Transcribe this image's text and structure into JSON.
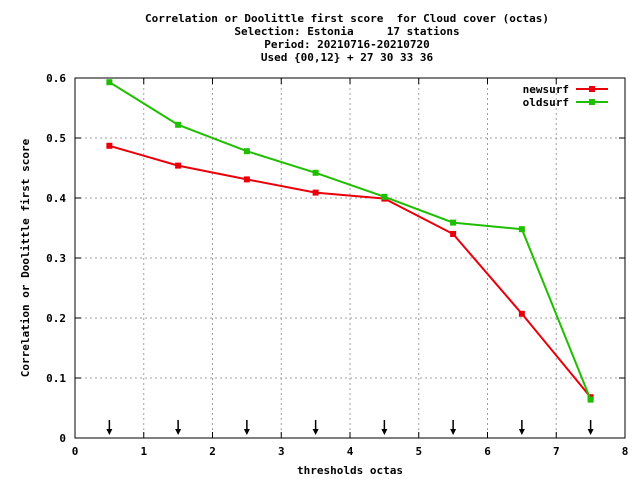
{
  "chart_data": {
    "type": "line",
    "title_lines": [
      "Correlation or Doolittle first score  for Cloud cover (octas)",
      "Selection: Estonia     17 stations",
      "Period: 20210716-20210720",
      "Used {00,12} + 27 30 33 36"
    ],
    "xlabel": "thresholds octas",
    "ylabel": "Correlation or Doolittle first score",
    "xlim": [
      0,
      8
    ],
    "ylim": [
      0,
      0.6
    ],
    "xticks": [
      0,
      1,
      2,
      3,
      4,
      5,
      6,
      7,
      8
    ],
    "yticks": [
      0,
      0.1,
      0.2,
      0.3,
      0.4,
      0.5,
      0.6
    ],
    "xtick_labels": [
      "0",
      "1",
      "2",
      "3",
      "4",
      "5",
      "6",
      "7",
      "8"
    ],
    "ytick_labels": [
      "0",
      "0.1",
      "0.2",
      "0.3",
      "0.4",
      "0.5",
      "0.6"
    ],
    "grid": true,
    "legend_position": "top-right",
    "x": [
      0.5,
      1.5,
      2.5,
      3.5,
      4.5,
      5.5,
      6.5,
      7.5
    ],
    "arrow_markers_x": [
      0.5,
      1.5,
      2.5,
      3.5,
      4.5,
      5.5,
      6.5,
      7.5
    ],
    "series": [
      {
        "name": "newsurf",
        "color": "#e8000b",
        "values": [
          0.487,
          0.454,
          0.431,
          0.409,
          0.399,
          0.34,
          0.207,
          0.068
        ]
      },
      {
        "name": "oldsurf",
        "color": "#1fbf00",
        "values": [
          0.593,
          0.522,
          0.478,
          0.442,
          0.402,
          0.359,
          0.348,
          0.064
        ]
      }
    ]
  }
}
